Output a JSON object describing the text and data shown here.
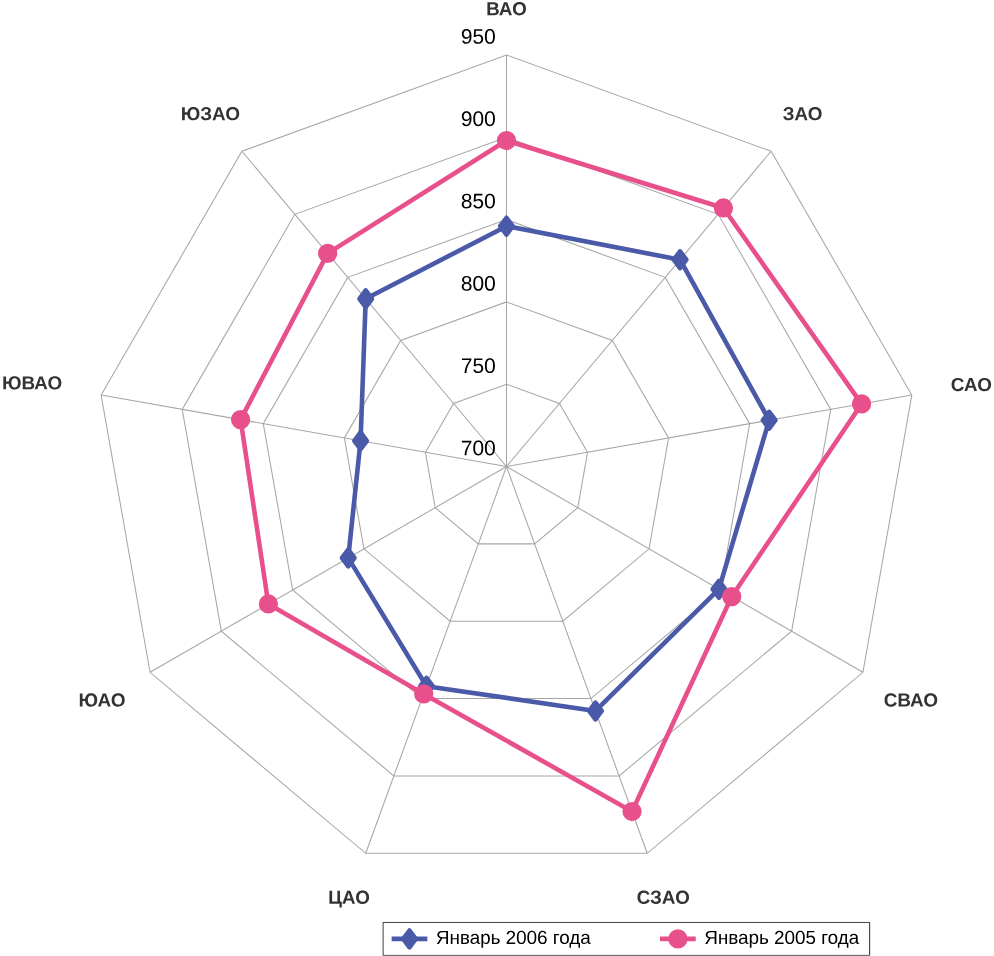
{
  "chart_data": {
    "type": "radar",
    "categories": [
      "ВАО",
      "ЗАО",
      "САО",
      "СВАО",
      "СЗАО",
      "ЦАО",
      "ЮАО",
      "ЮВАО",
      "ЮЗАО"
    ],
    "ylim": [
      700,
      950
    ],
    "yticks": [
      700,
      750,
      800,
      850,
      900,
      950
    ],
    "grid": true,
    "legend": "bottom",
    "series": [
      {
        "name": "Январь 2006 года",
        "color": "#4a5aa8",
        "marker": "diamond",
        "values": [
          846,
          864,
          862,
          849,
          858,
          842,
          811,
          790,
          833
        ]
      },
      {
        "name": "Январь 2005 года",
        "color": "#e8508c",
        "marker": "circle",
        "values": [
          898,
          905,
          919,
          858,
          923,
          847,
          867,
          864,
          869
        ]
      }
    ]
  }
}
